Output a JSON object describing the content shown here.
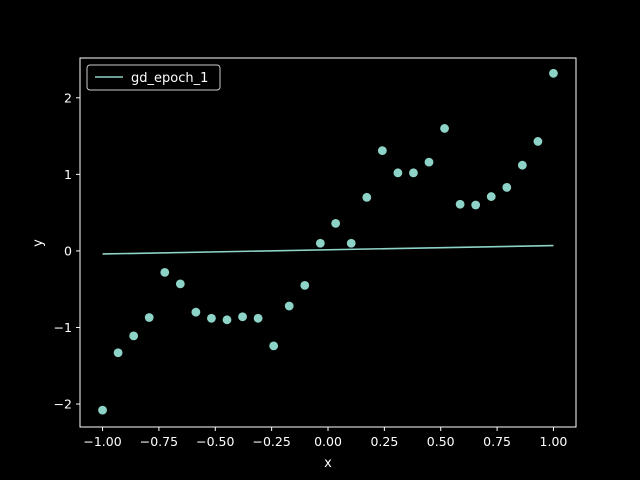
{
  "colors": {
    "background": "#000000",
    "axes": "#ffffff",
    "series": "#8dd3c7",
    "legend_border": "#cccccc"
  },
  "chart_data": {
    "type": "scatter",
    "title": "",
    "xlabel": "x",
    "ylabel": "y",
    "xlim": [
      -1.1,
      1.1
    ],
    "ylim": [
      -2.3,
      2.52
    ],
    "grid": false,
    "legend_position": "top-left",
    "xticks": [
      -1.0,
      -0.75,
      -0.5,
      -0.25,
      0.0,
      0.25,
      0.5,
      0.75,
      1.0
    ],
    "xtick_labels": [
      "−1.00",
      "−0.75",
      "−0.50",
      "−0.25",
      "0.00",
      "0.25",
      "0.50",
      "0.75",
      "1.00"
    ],
    "yticks": [
      -2,
      -1,
      0,
      1,
      2
    ],
    "ytick_labels": [
      "−2",
      "−1",
      "0",
      "1",
      "2"
    ],
    "series": [
      {
        "name": "data",
        "kind": "scatter",
        "in_legend": false,
        "x": [
          -1.0,
          -0.931,
          -0.862,
          -0.793,
          -0.724,
          -0.655,
          -0.586,
          -0.517,
          -0.448,
          -0.379,
          -0.31,
          -0.241,
          -0.172,
          -0.103,
          -0.034,
          0.034,
          0.103,
          0.172,
          0.241,
          0.31,
          0.379,
          0.448,
          0.517,
          0.586,
          0.655,
          0.724,
          0.793,
          0.862,
          0.931,
          1.0
        ],
        "y": [
          -2.08,
          -1.33,
          -1.11,
          -0.87,
          -0.28,
          -0.43,
          -0.8,
          -0.88,
          -0.9,
          -0.86,
          -0.88,
          -1.24,
          -0.72,
          -0.45,
          0.1,
          0.36,
          0.1,
          0.7,
          1.31,
          1.02,
          1.02,
          1.16,
          1.6,
          0.61,
          0.6,
          0.71,
          0.83,
          1.12,
          1.43,
          2.32
        ]
      },
      {
        "name": "gd_epoch_1",
        "kind": "line",
        "in_legend": true,
        "x": [
          -1.0,
          1.0
        ],
        "y": [
          -0.04,
          0.07
        ]
      }
    ]
  }
}
